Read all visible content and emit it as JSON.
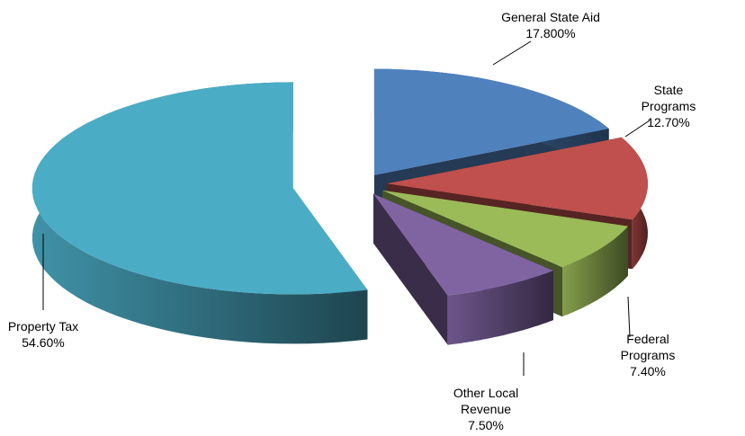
{
  "chart_data": {
    "type": "pie3d",
    "categories": [
      "General State Aid",
      "State Programs",
      "Federal Programs",
      "Other Local Revenue",
      "Property Tax"
    ],
    "values": [
      17.8,
      12.7,
      7.4,
      7.5,
      54.6
    ],
    "value_labels": [
      "17.800%",
      "12.70%",
      "7.40%",
      "7.50%",
      "54.60%"
    ],
    "colors": [
      "#4f81bd",
      "#c0504d",
      "#9bbb59",
      "#8064a2",
      "#4bacc6"
    ]
  }
}
